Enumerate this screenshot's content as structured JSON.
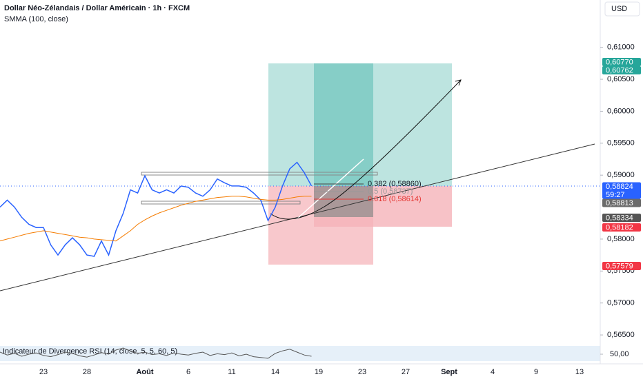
{
  "chart_data": {
    "type": "line",
    "title": "Dollar Néo-Zélandais / Dollar Américain · 1h · FXCM",
    "currency": "USD",
    "categories": [
      null,
      null,
      null,
      null,
      null,
      null,
      "23",
      null,
      null,
      null,
      null,
      null,
      "28",
      null,
      null,
      null,
      null,
      null,
      null,
      null,
      "Août",
      null,
      null,
      null,
      null,
      null,
      "6",
      null,
      null,
      null,
      null,
      null,
      "11",
      null,
      null,
      null,
      null,
      null,
      "14",
      null,
      null,
      null,
      null,
      null,
      "19",
      null,
      null,
      null,
      null,
      null,
      "23",
      null,
      null,
      null,
      null,
      null,
      "27",
      null,
      null,
      null,
      null,
      null,
      "Sept",
      null,
      null,
      null,
      null,
      null,
      "4",
      null,
      null,
      null,
      null,
      null,
      "9",
      null,
      null,
      null,
      null,
      null,
      "13",
      null,
      null
    ],
    "series": [
      {
        "color": "#2962ff",
        "values": [
          0.585,
          0.5861,
          0.585,
          0.5834,
          0.5823,
          0.5818,
          0.5818,
          0.5791,
          0.5775,
          0.5791,
          0.5802,
          0.5791,
          0.5775,
          0.5773,
          0.5797,
          0.5775,
          0.5813,
          0.584,
          0.5877,
          0.5872,
          0.5899,
          0.5877,
          0.5872,
          0.5877,
          0.5872,
          0.5883,
          0.5881,
          0.5872,
          0.5867,
          0.5877,
          0.5894,
          0.5888,
          0.5883,
          0.5883,
          0.5881,
          0.5872,
          0.5861,
          0.5829,
          0.585,
          0.5883,
          0.591,
          0.592,
          0.5904,
          0.5883,
          null,
          null,
          null,
          null,
          null,
          null,
          null,
          null,
          null,
          null,
          null,
          null,
          null,
          null,
          null,
          null,
          null,
          null,
          null,
          null,
          null,
          null,
          null,
          null,
          null,
          null,
          null,
          null,
          null,
          null,
          null,
          null,
          null,
          null,
          null,
          null,
          null,
          null,
          null
        ]
      },
      {
        "name": "SMMA (100, close)",
        "color": "#f57c00",
        "values": [
          0.5797,
          0.58,
          0.5803,
          0.5806,
          0.5809,
          0.5811,
          0.5813,
          0.5811,
          0.5809,
          0.5807,
          0.5805,
          0.5803,
          0.5802,
          0.58,
          0.5799,
          0.5798,
          0.5797,
          0.5805,
          0.5813,
          0.5823,
          0.583,
          0.5836,
          0.5841,
          0.5845,
          0.5849,
          0.5853,
          0.5856,
          0.5859,
          0.5861,
          0.5863,
          0.5865,
          0.5866,
          0.5867,
          0.5867,
          0.5866,
          0.5864,
          0.5862,
          0.5861,
          0.5861,
          0.5862,
          0.5864,
          0.5866,
          0.5867,
          0.5867,
          null,
          null,
          null,
          null,
          null,
          null,
          null,
          null,
          null,
          null,
          null,
          null,
          null,
          null,
          null,
          null,
          null,
          null,
          null,
          null,
          null,
          null,
          null,
          null,
          null,
          null,
          null,
          null,
          null,
          null,
          null,
          null,
          null,
          null,
          null,
          null,
          null,
          null,
          null
        ]
      }
    ],
    "ylim": [
      0.5635,
      0.6174
    ],
    "yticks": [
      {
        "value": 0.565,
        "label": "0,56500"
      },
      {
        "value": 0.57,
        "label": "0,57000"
      },
      {
        "value": 0.575,
        "label": "0,57500"
      },
      {
        "value": 0.58,
        "label": "0,58000"
      },
      {
        "value": 0.59,
        "label": "0,59000"
      },
      {
        "value": 0.595,
        "label": "0,59500"
      },
      {
        "value": 0.6,
        "label": "0,60000"
      },
      {
        "value": 0.605,
        "label": "0,60500"
      },
      {
        "value": 0.61,
        "label": "0,61000"
      }
    ],
    "price_tags": [
      {
        "value": 0.6077,
        "label": "0,60770",
        "color": "#26a69a"
      },
      {
        "value": 0.60762,
        "label": "0,60762",
        "color": "#26a69a"
      },
      {
        "value": 0.58824,
        "label": "0,58824",
        "color": "#2962ff"
      },
      {
        "value": 0.58813,
        "label": "0,58813",
        "color": "#6b6b6b"
      },
      {
        "value": 0.58334,
        "label": "0,58334",
        "color": "#555555"
      },
      {
        "value": 0.58182,
        "label": "0,58182",
        "color": "#f23645"
      },
      {
        "value": 0.57579,
        "label": "0,57579",
        "color": "#f23645"
      }
    ],
    "countdown": "59:27",
    "annotations": [
      "0.382 (0,58860)",
      "0.5 (0,58737)",
      "0.618 (0,58614)"
    ],
    "indicator": {
      "title": "Indicateur de Divergence RSI (14, close, 5, 5, 60, 5)",
      "color": "#555555",
      "ylim": [
        30,
        70
      ],
      "yticks": [
        {
          "value": 50,
          "label": "50,00"
        }
      ],
      "values": [
        55,
        48,
        52,
        45,
        50,
        53,
        47,
        44,
        49,
        55,
        52,
        46,
        43,
        48,
        54,
        50,
        60,
        65,
        58,
        52,
        55,
        49,
        51,
        47,
        53,
        50,
        48,
        52,
        55,
        47,
        51,
        49,
        53,
        46,
        50,
        44,
        42,
        40,
        52,
        58,
        62,
        55,
        48,
        45,
        null,
        null,
        null,
        null,
        null,
        null,
        null,
        null,
        null,
        null,
        null,
        null,
        null,
        null,
        null,
        null,
        null,
        null,
        null,
        null,
        null,
        null,
        null,
        null,
        null,
        null,
        null,
        null,
        null,
        null,
        null,
        null,
        null,
        null,
        null,
        null,
        null,
        null,
        null
      ]
    }
  }
}
